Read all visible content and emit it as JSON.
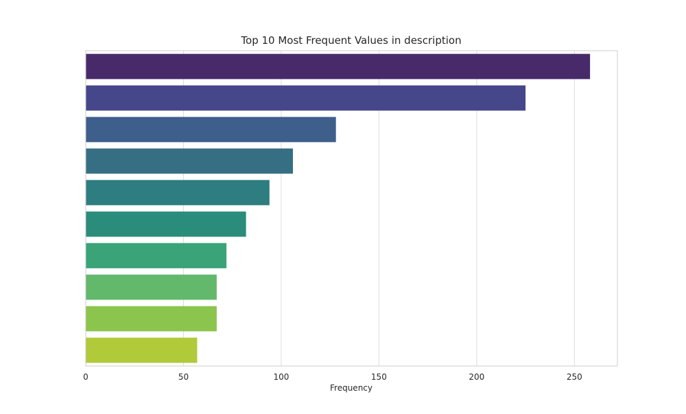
{
  "chart_data": {
    "type": "bar",
    "orientation": "horizontal",
    "title": "Top 10 Most Frequent Values in description",
    "xlabel": "Frequency",
    "ylabel": "",
    "xlim": [
      0,
      272
    ],
    "x_ticks": [
      0,
      50,
      100,
      150,
      200,
      250
    ],
    "grid": true,
    "categories": [
      "",
      "",
      "",
      "",
      "",
      "",
      "",
      "",
      "",
      ""
    ],
    "values": [
      258,
      225,
      128,
      106,
      94,
      82,
      72,
      67,
      67,
      57
    ],
    "colors": [
      "#482a6b",
      "#46468b",
      "#3e5f8c",
      "#366f83",
      "#2e7d80",
      "#2a8c7a",
      "#3aa378",
      "#62b86b",
      "#8bc54e",
      "#b0ca3a"
    ]
  }
}
